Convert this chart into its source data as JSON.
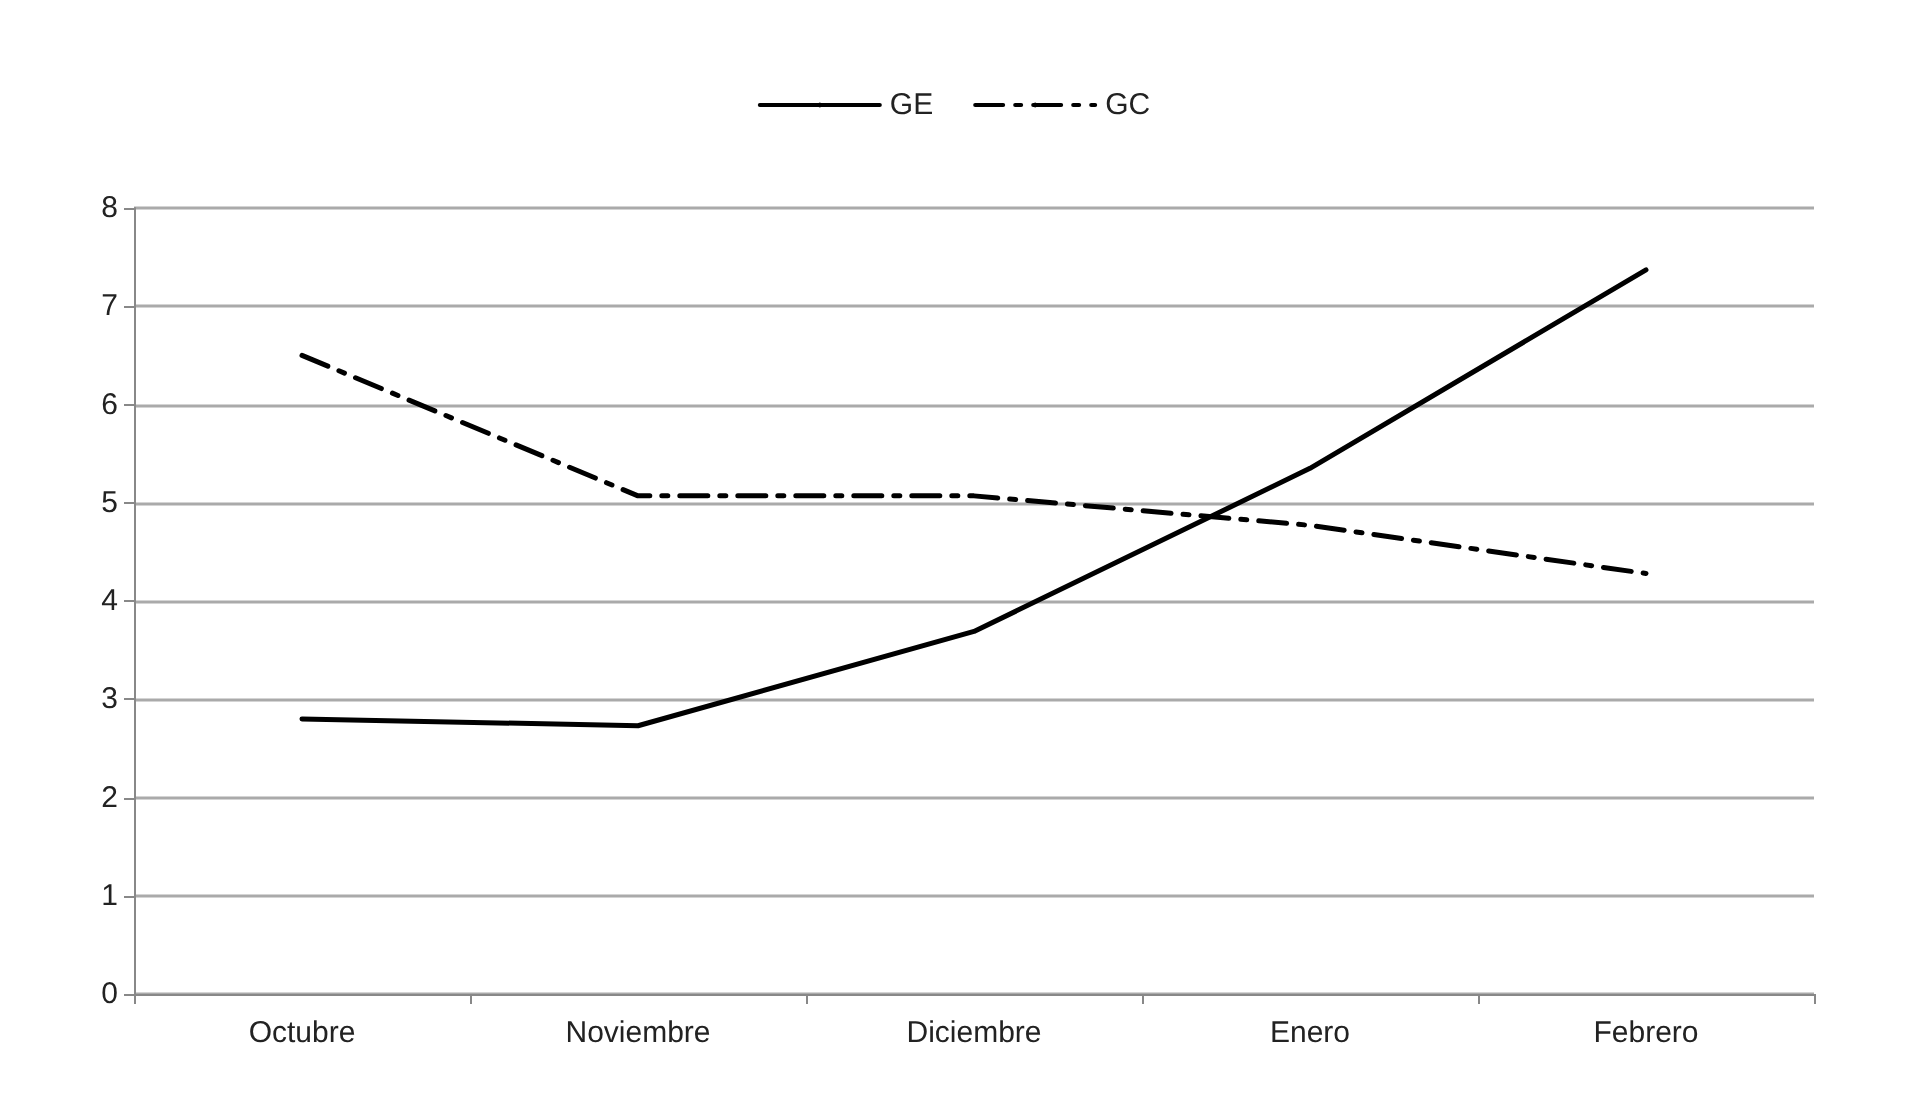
{
  "chart_data": {
    "type": "line",
    "categories": [
      "Octubre",
      "Noviembre",
      "Diciembre",
      "Enero",
      "Febrero"
    ],
    "series": [
      {
        "name": "GE",
        "color": "#000000",
        "line_style": "solid",
        "values": [
          2.8,
          2.73,
          3.69,
          5.35,
          7.37
        ]
      },
      {
        "name": "GC",
        "color": "#000000",
        "line_style": "dashdot",
        "values": [
          6.5,
          5.07,
          5.07,
          4.77,
          4.28
        ]
      }
    ],
    "ylim": [
      0,
      8
    ],
    "yticks": [
      0,
      1,
      2,
      3,
      4,
      5,
      6,
      7,
      8
    ],
    "grid": "y",
    "legend": "top",
    "marker": "none"
  }
}
